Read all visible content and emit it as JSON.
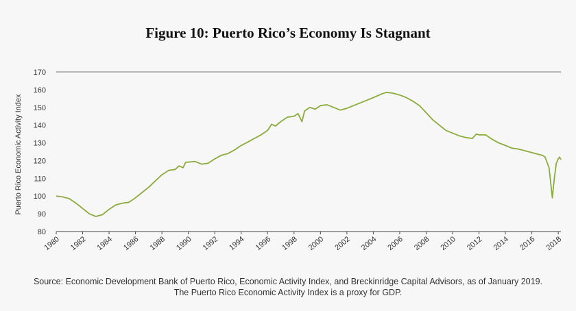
{
  "title": "Figure 10: Puerto Rico’s Economy Is Stagnant",
  "source": "Source: Economic Development Bank of Puerto Rico, Economic Activity Index, and Breckinridge Capital Advisors, as of January 2019. The Puerto Rico Economic Activity Index is a proxy for GDP.",
  "colors": {
    "line": "#8bab3c",
    "axis": "#444444",
    "background": "#f7f7f7"
  },
  "chart_data": {
    "type": "line",
    "title": "Figure 10: Puerto Rico’s Economy Is Stagnant",
    "xlabel": "",
    "ylabel": "Puerto Rico Economic Activity Index",
    "xlim": [
      1980,
      2018.2
    ],
    "ylim": [
      80,
      170
    ],
    "x_ticks": [
      1980,
      1982,
      1984,
      1986,
      1988,
      1990,
      1992,
      1994,
      1996,
      1998,
      2000,
      2002,
      2004,
      2006,
      2008,
      2010,
      2012,
      2014,
      2016,
      2018
    ],
    "x_tick_labels": [
      "1980",
      "1982",
      "1984",
      "1986",
      "1988",
      "1990",
      "1992",
      "1994",
      "1996",
      "1998",
      "2000",
      "2002",
      "2004",
      "2006",
      "2008",
      "2010",
      "2012",
      "2014",
      "2016",
      "2018"
    ],
    "y_ticks": [
      80,
      90,
      100,
      110,
      120,
      130,
      140,
      150,
      160,
      170
    ],
    "y_tick_labels": [
      "80",
      "90",
      "100",
      "110",
      "120",
      "130",
      "140",
      "150",
      "160",
      "170"
    ],
    "grid": "none",
    "legend": "none",
    "series": [
      {
        "values": [
          [
            1980.0,
            100.0
          ],
          [
            1980.5,
            99.5
          ],
          [
            1981.0,
            98.5
          ],
          [
            1981.5,
            96.0
          ],
          [
            1982.0,
            93.0
          ],
          [
            1982.5,
            90.0
          ],
          [
            1983.0,
            88.5
          ],
          [
            1983.5,
            89.5
          ],
          [
            1984.0,
            92.5
          ],
          [
            1984.5,
            95.0
          ],
          [
            1985.0,
            96.0
          ],
          [
            1985.5,
            96.5
          ],
          [
            1986.0,
            99.0
          ],
          [
            1986.5,
            102.0
          ],
          [
            1987.0,
            105.0
          ],
          [
            1987.5,
            108.5
          ],
          [
            1988.0,
            112.0
          ],
          [
            1988.5,
            114.5
          ],
          [
            1989.0,
            115.0
          ],
          [
            1989.3,
            117.0
          ],
          [
            1989.6,
            116.0
          ],
          [
            1989.8,
            119.0
          ],
          [
            1990.5,
            119.5
          ],
          [
            1991.0,
            118.0
          ],
          [
            1991.5,
            118.5
          ],
          [
            1992.0,
            121.0
          ],
          [
            1992.5,
            123.0
          ],
          [
            1993.0,
            124.0
          ],
          [
            1993.5,
            126.0
          ],
          [
            1994.0,
            128.5
          ],
          [
            1994.5,
            130.5
          ],
          [
            1995.0,
            132.5
          ],
          [
            1995.5,
            134.5
          ],
          [
            1996.0,
            137.0
          ],
          [
            1996.3,
            140.5
          ],
          [
            1996.6,
            139.5
          ],
          [
            1997.0,
            142.0
          ],
          [
            1997.5,
            144.5
          ],
          [
            1998.0,
            145.0
          ],
          [
            1998.3,
            146.5
          ],
          [
            1998.6,
            142.0
          ],
          [
            1998.8,
            148.0
          ],
          [
            1999.2,
            150.0
          ],
          [
            1999.6,
            149.0
          ],
          [
            2000.0,
            151.0
          ],
          [
            2000.5,
            151.5
          ],
          [
            2001.0,
            150.0
          ],
          [
            2001.5,
            148.5
          ],
          [
            2002.0,
            149.5
          ],
          [
            2002.5,
            151.0
          ],
          [
            2003.0,
            152.5
          ],
          [
            2003.5,
            154.0
          ],
          [
            2004.0,
            155.5
          ],
          [
            2004.3,
            156.5
          ],
          [
            2004.6,
            157.5
          ],
          [
            2005.0,
            158.5
          ],
          [
            2005.5,
            158.0
          ],
          [
            2006.0,
            157.0
          ],
          [
            2006.5,
            155.5
          ],
          [
            2007.0,
            153.5
          ],
          [
            2007.5,
            151.0
          ],
          [
            2008.0,
            147.0
          ],
          [
            2008.5,
            143.0
          ],
          [
            2009.0,
            140.0
          ],
          [
            2009.5,
            137.0
          ],
          [
            2010.0,
            135.5
          ],
          [
            2010.5,
            134.0
          ],
          [
            2011.0,
            133.0
          ],
          [
            2011.5,
            132.5
          ],
          [
            2011.8,
            135.0
          ],
          [
            2012.0,
            134.5
          ],
          [
            2012.5,
            134.5
          ],
          [
            2013.0,
            132.0
          ],
          [
            2013.5,
            130.0
          ],
          [
            2014.0,
            128.5
          ],
          [
            2014.5,
            127.0
          ],
          [
            2015.0,
            126.5
          ],
          [
            2015.5,
            125.5
          ],
          [
            2016.0,
            124.5
          ],
          [
            2016.5,
            123.5
          ],
          [
            2016.8,
            123.0
          ],
          [
            2017.0,
            122.0
          ],
          [
            2017.3,
            116.0
          ],
          [
            2017.55,
            99.0
          ],
          [
            2017.7,
            110.0
          ],
          [
            2017.85,
            118.5
          ],
          [
            2018.0,
            121.0
          ],
          [
            2018.1,
            122.0
          ],
          [
            2018.2,
            120.5
          ]
        ]
      }
    ]
  }
}
